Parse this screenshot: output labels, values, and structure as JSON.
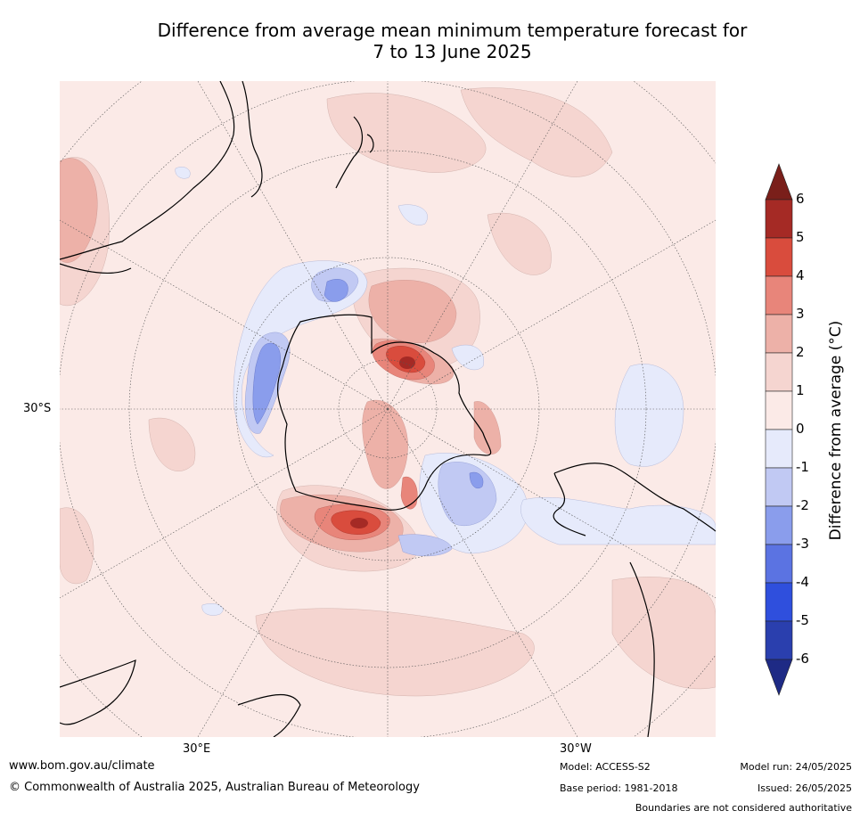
{
  "title": {
    "line1": "Difference from average mean minimum temperature forecast for",
    "line2": "7 to 13 June 2025"
  },
  "map_labels": {
    "lat_30s": "30°S",
    "lon_30e": "30°E",
    "lon_30w": "30°W"
  },
  "colorbar": {
    "label": "Difference from average (°C)",
    "ticks": [
      "6",
      "5",
      "4",
      "3",
      "2",
      "1",
      "0",
      "-1",
      "-2",
      "-3",
      "-4",
      "-5",
      "-6"
    ],
    "colors": [
      "#7a1f1a",
      "#a52a25",
      "#d94c3d",
      "#e8857a",
      "#edb1a8",
      "#f5d5d0",
      "#fbeae7",
      "#e6eafb",
      "#c1c9f3",
      "#8a9dec",
      "#5b73e2",
      "#2f4fdd",
      "#2a3fae",
      "#1e2a85"
    ]
  },
  "footer": {
    "url": "www.bom.gov.au/climate",
    "copyright": "© Commonwealth of Australia 2025, Australian Bureau of Meteorology",
    "model": "Model: ACCESS-S2",
    "base_period": "Base period: 1981-2018",
    "model_run": "Model run: 24/05/2025",
    "issued": "Issued: 26/05/2025",
    "boundaries": "Boundaries are not considered authoritative"
  }
}
